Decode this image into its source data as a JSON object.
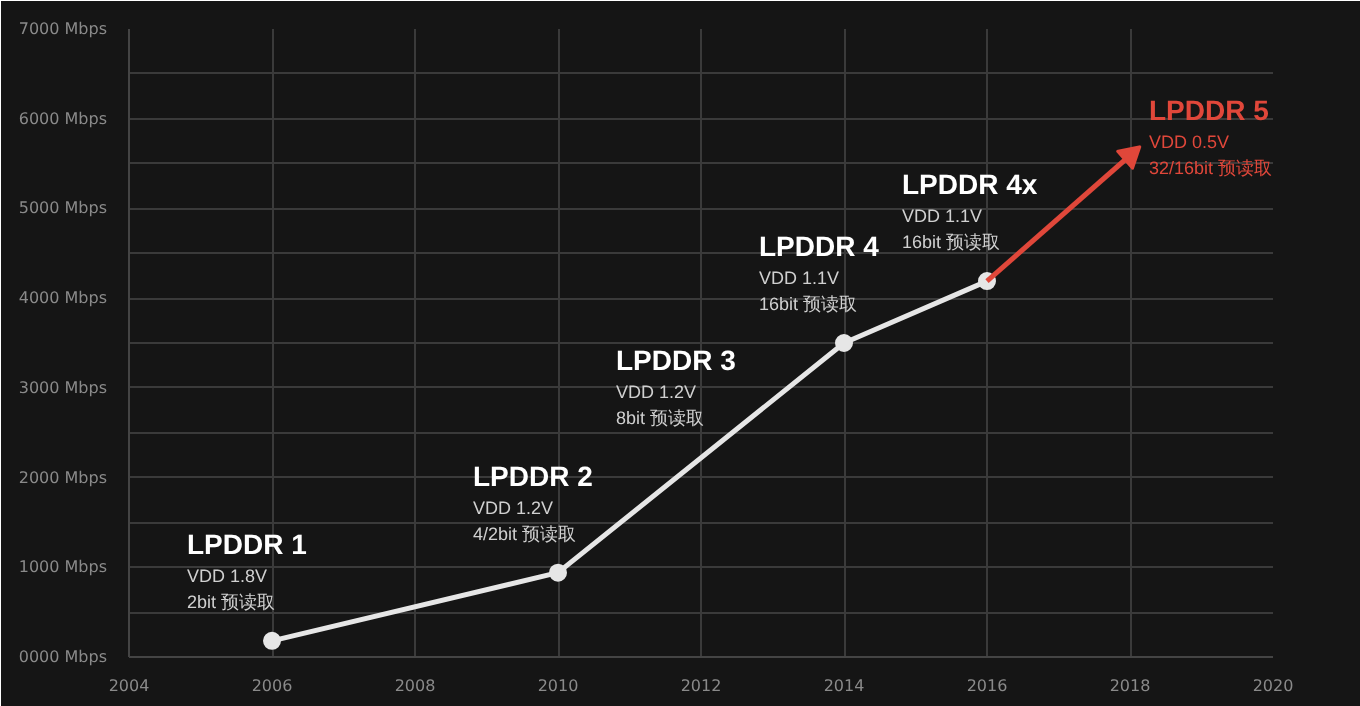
{
  "chart_data": {
    "type": "line",
    "xlim": [
      2004,
      2020
    ],
    "ylim": [
      0,
      7000
    ],
    "xticks": [
      2004,
      2006,
      2008,
      2010,
      2012,
      2014,
      2016,
      2018,
      2020
    ],
    "yticks": [
      {
        "value": 0,
        "label": "0000 Mbps"
      },
      {
        "value": 500,
        "label": null
      },
      {
        "value": 1000,
        "label": "1000 Mbps"
      },
      {
        "value": 1500,
        "label": null
      },
      {
        "value": 2000,
        "label": "2000 Mbps"
      },
      {
        "value": 2500,
        "label": null
      },
      {
        "value": 3000,
        "label": "3000 Mbps"
      },
      {
        "value": 3500,
        "label": null
      },
      {
        "value": 4000,
        "label": "4000 Mbps"
      },
      {
        "value": 4500,
        "label": null
      },
      {
        "value": 5000,
        "label": "5000 Mbps"
      },
      {
        "value": 5500,
        "label": null
      },
      {
        "value": 6000,
        "label": "6000 Mbps"
      },
      {
        "value": 6500,
        "label": null
      },
      {
        "value": 7000,
        "label": "7000 Mbps"
      }
    ],
    "grid": true,
    "series": [
      {
        "color": "#e6e6e6",
        "x": [
          2006,
          2010,
          2014,
          2016
        ],
        "values": [
          180,
          940,
          3500,
          4190
        ],
        "marker": "circle"
      },
      {
        "name": "LPDDR 5\nVDD 0.5V\n32/16bit 预读取",
        "color": "#e0473a",
        "x": [
          2016,
          2018
        ],
        "values": [
          4190,
          5590
        ],
        "marker": "triangle"
      }
    ],
    "annotations": [
      {
        "text": "LPDDR 1\nVDD 1.8V\n2bit 预读取",
        "x": 2006,
        "y": 180
      },
      {
        "text": "LPDDR 2\nVDD 1.2V\n4/2bit 预读取",
        "x": 2010,
        "y": 940
      },
      {
        "text": "LPDDR 3\nVDD 1.2V\n8bit 预读取",
        "x": 2012,
        "y": 2220
      },
      {
        "text": "LPDDR 4\nVDD 1.1V\n16bit 预读取",
        "x": 2014,
        "y": 3500
      },
      {
        "text": "LPDDR 4x\nVDD 1.1V\n16bit 预读取",
        "x": 2016,
        "y": 4190
      }
    ]
  }
}
